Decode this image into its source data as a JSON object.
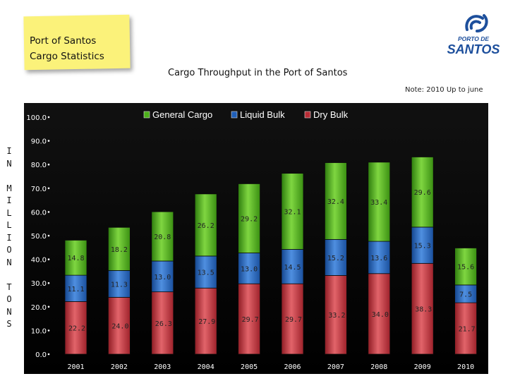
{
  "sticky_note": {
    "line1": "Port of Santos",
    "line2": "Cargo Statistics"
  },
  "logo": {
    "line1": "PORTO DE",
    "line2": "SANTOS"
  },
  "side_label": {
    "text": "IN MILLION TONS",
    "letters": [
      "I",
      "N",
      "",
      "M",
      "I",
      "L",
      "L",
      "I",
      "O",
      "N",
      "",
      "T",
      "O",
      "N",
      "S"
    ]
  },
  "note": "Note: 2010 Up to june",
  "colors": {
    "plot_background": "#000000",
    "general_cargo": "#4caf1a",
    "liquid_bulk": "#1f5fb8",
    "dry_bulk": "#b72c35",
    "axis_text": "#ffffff",
    "data_label": "#222222",
    "year_label": "#ffffff"
  },
  "chart_data": {
    "type": "bar",
    "stacked": true,
    "title": "Cargo Throughput in the Port of Santos",
    "xlabel": "",
    "ylabel": "IN MILLION TONS",
    "ylim": [
      0,
      100
    ],
    "yticks": [
      "0.0",
      "10.0",
      "20.0",
      "30.0",
      "40.0",
      "50.0",
      "60.0",
      "70.0",
      "80.0",
      "90.0",
      "100.0"
    ],
    "grid": false,
    "legend_position": "top",
    "categories": [
      "2001",
      "2002",
      "2003",
      "2004",
      "2005",
      "2006",
      "2007",
      "2008",
      "2009",
      "2010"
    ],
    "series": [
      {
        "name": "Dry Bulk",
        "values": [
          22.2,
          24.0,
          26.3,
          27.9,
          29.7,
          29.7,
          33.2,
          34.0,
          38.3,
          21.7
        ],
        "labels": [
          "22.2",
          "24.0",
          "26.3",
          "27.9",
          "29.7",
          "29.7",
          "33.2",
          "34.0",
          "38.3",
          "21.7"
        ]
      },
      {
        "name": "Liquid Bulk",
        "values": [
          11.1,
          11.3,
          13.0,
          13.5,
          13.0,
          14.5,
          15.2,
          13.6,
          15.3,
          7.5
        ],
        "labels": [
          "11.1",
          "11.3",
          "13.0",
          "13.5",
          "13.0",
          "14.5",
          "15.2",
          "13.6",
          "15.3",
          "7.5"
        ]
      },
      {
        "name": "General Cargo",
        "values": [
          14.8,
          18.2,
          20.8,
          26.2,
          29.2,
          32.1,
          32.4,
          33.4,
          29.6,
          15.6
        ],
        "labels": [
          "14.8",
          "18.2",
          "20.8",
          "26.2",
          "29.2",
          "32.1",
          "32.4",
          "33.4",
          "29.6",
          "15.6"
        ]
      }
    ],
    "legend": [
      "General Cargo",
      "Liquid Bulk",
      "Dry Bulk"
    ]
  }
}
